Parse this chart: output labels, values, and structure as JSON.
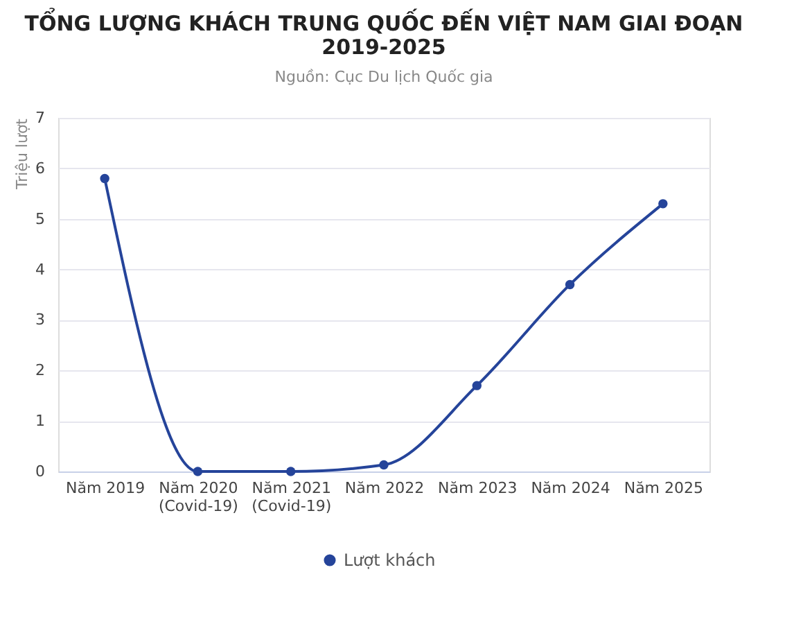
{
  "chart_data": {
    "type": "line",
    "title": "TỔNG LƯỢNG KHÁCH TRUNG QUỐC ĐẾN VIỆT NAM GIAI ĐOẠN 2019-2025",
    "subtitle": "Nguồn: Cục Du lịch Quốc gia",
    "ylabel": "Triệu lượt",
    "categories": [
      "Năm 2019",
      "Năm 2020\n(Covid-19)",
      "Năm 2021\n(Covid-19)",
      "Năm 2022",
      "Năm 2023",
      "Năm 2024",
      "Năm 2025"
    ],
    "series": [
      {
        "name": "Lượt khách",
        "color": "#25449a",
        "values": [
          5.8,
          0.0,
          0.0,
          0.13,
          1.7,
          3.7,
          5.3
        ]
      }
    ],
    "ylim": [
      0,
      7
    ],
    "yticks": [
      0,
      1,
      2,
      3,
      4,
      5,
      6,
      7
    ],
    "grid": "y",
    "legend": "bottom",
    "marker": "circle",
    "line_style": "solid"
  }
}
